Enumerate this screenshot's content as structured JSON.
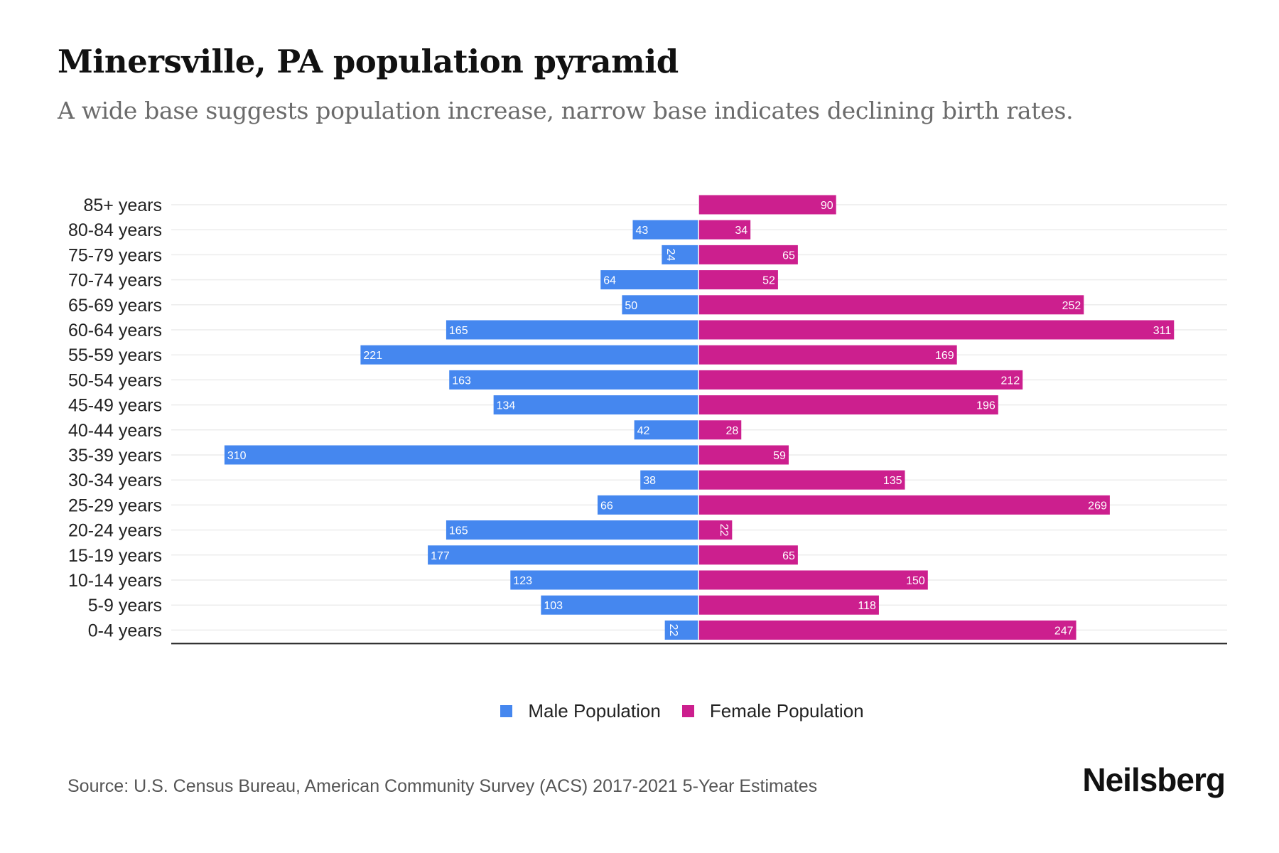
{
  "header": {
    "title": "Minersville, PA population pyramid",
    "subtitle": "A wide base suggests population increase, narrow base indicates declining birth rates."
  },
  "footer": {
    "source": "Source: U.S. Census Bureau, American Community Survey (ACS) 2017-2021 5-Year Estimates",
    "brand": "Neilsberg"
  },
  "chart_data": {
    "type": "bar",
    "orientation": "horizontal-diverging",
    "title": "Minersville, PA population pyramid",
    "subtitle": "A wide base suggests population increase, narrow base indicates declining birth rates.",
    "xlabel": "",
    "ylabel": "",
    "grid": true,
    "legend_position": "bottom-center",
    "categories": [
      "85+ years",
      "80-84 years",
      "75-79 years",
      "70-74 years",
      "65-69 years",
      "60-64 years",
      "55-59 years",
      "50-54 years",
      "45-49 years",
      "40-44 years",
      "35-39 years",
      "30-34 years",
      "25-29 years",
      "20-24 years",
      "15-19 years",
      "10-14 years",
      "5-9 years",
      "0-4 years"
    ],
    "series": [
      {
        "name": "Male Population",
        "color": "#4587EF",
        "side": "left",
        "values": [
          0,
          43,
          24,
          64,
          50,
          165,
          221,
          163,
          134,
          42,
          310,
          38,
          66,
          165,
          177,
          123,
          103,
          22
        ]
      },
      {
        "name": "Female Population",
        "color": "#CC1F8E",
        "side": "right",
        "values": [
          90,
          34,
          65,
          52,
          252,
          311,
          169,
          212,
          196,
          28,
          59,
          135,
          269,
          22,
          65,
          150,
          118,
          247
        ]
      }
    ],
    "xlim": [
      -310,
      311
    ]
  }
}
